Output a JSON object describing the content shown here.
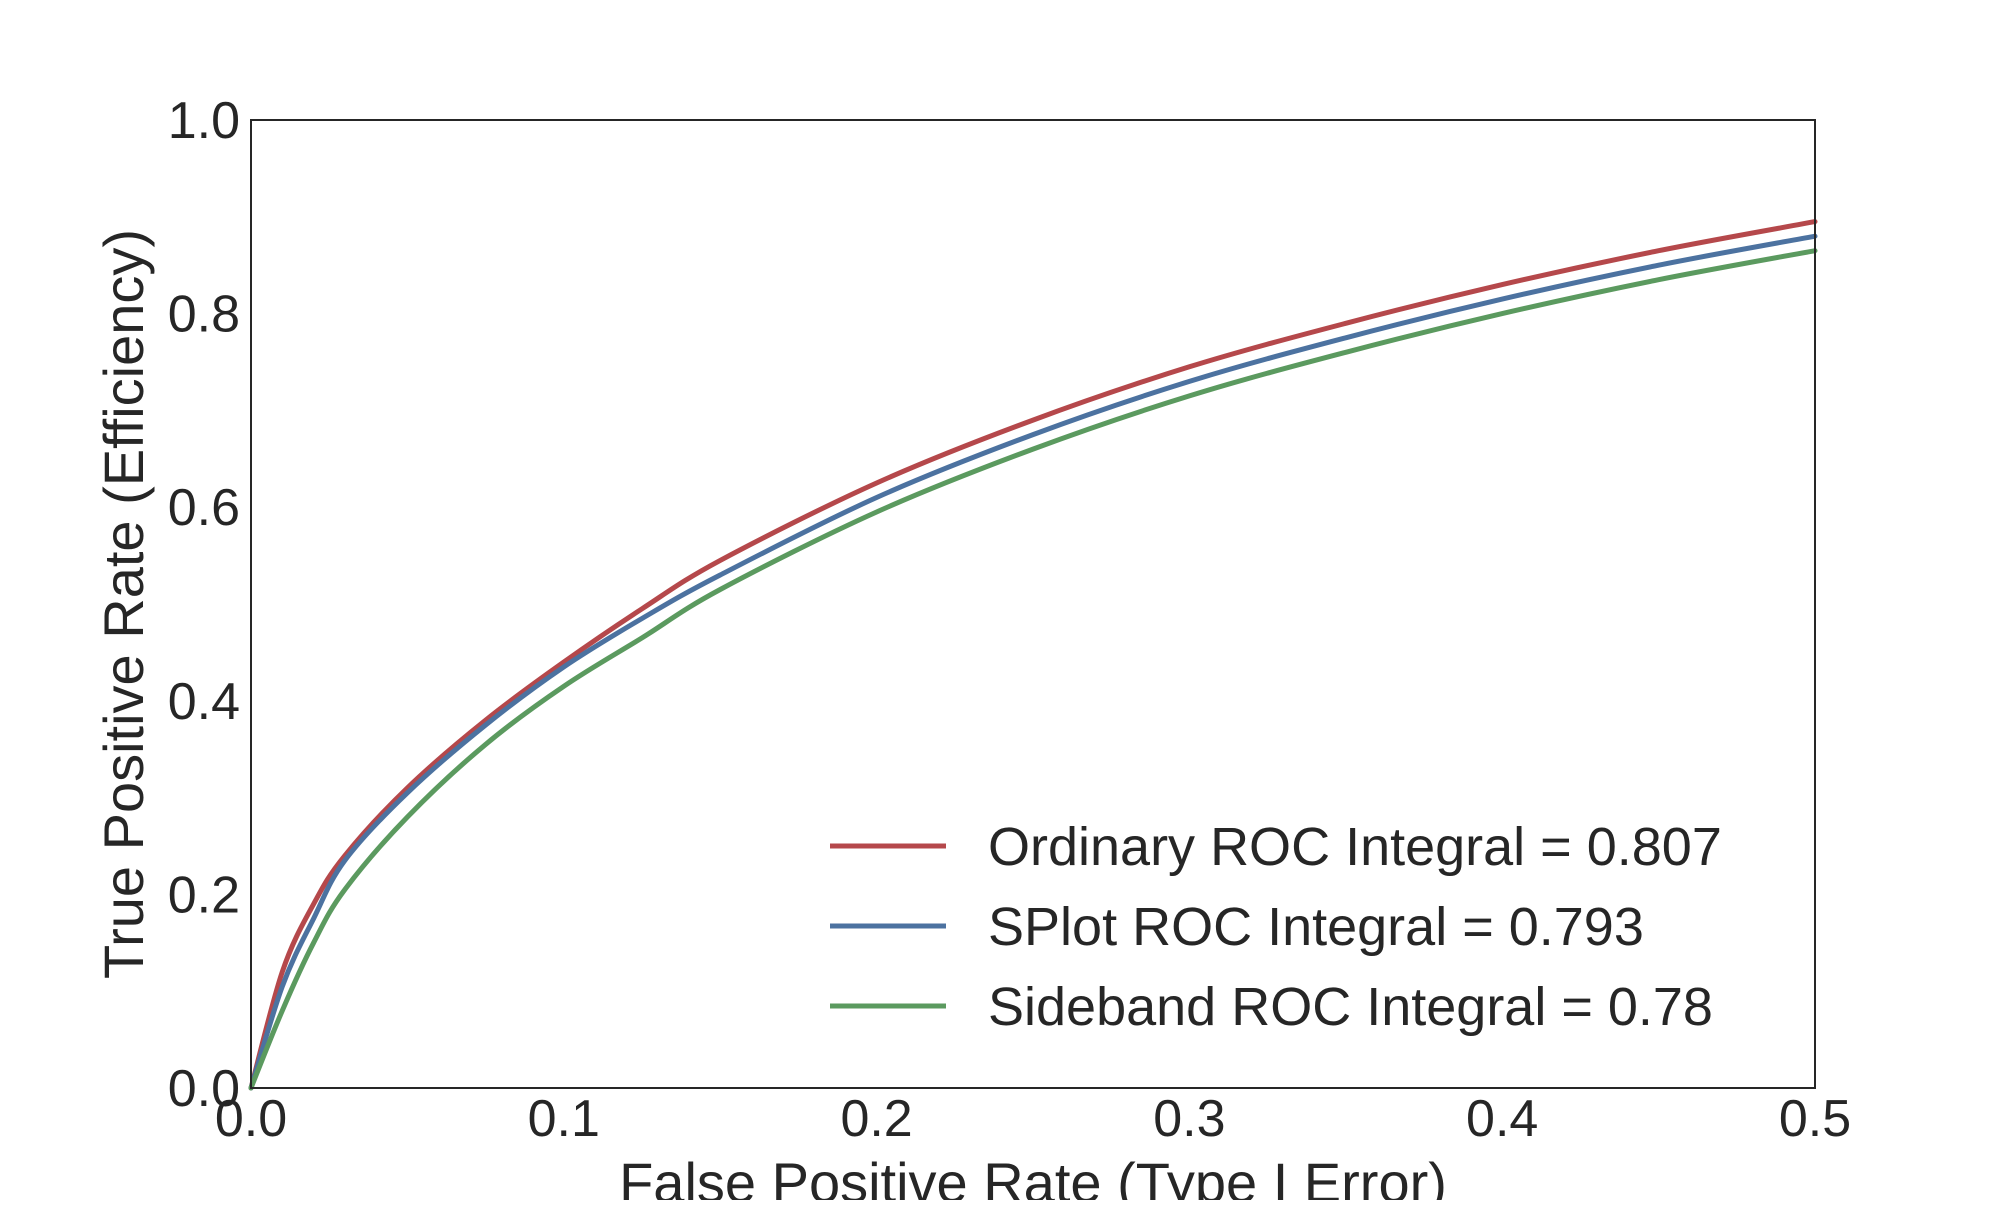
{
  "chart_data": {
    "type": "line",
    "title": "",
    "xlabel": "False Positive Rate (Type I Error)",
    "ylabel": "True Positive Rate (Efficiency)",
    "xlim": [
      0.0,
      0.5
    ],
    "ylim": [
      0.0,
      1.0
    ],
    "xticks": [
      "0.0",
      "0.1",
      "0.2",
      "0.3",
      "0.4",
      "0.5"
    ],
    "yticks": [
      "0.0",
      "0.2",
      "0.4",
      "0.6",
      "0.8",
      "1.0"
    ],
    "grid": false,
    "legend_position": "lower-right",
    "x": [
      0.0,
      0.01,
      0.02,
      0.03,
      0.05,
      0.075,
      0.1,
      0.125,
      0.15,
      0.2,
      0.25,
      0.3,
      0.35,
      0.4,
      0.45,
      0.5
    ],
    "series": [
      {
        "name": "Ordinary  ROC Integral = 0.807",
        "color": "#b5484b",
        "values": [
          0.0,
          0.12,
          0.19,
          0.24,
          0.31,
          0.38,
          0.44,
          0.495,
          0.545,
          0.625,
          0.69,
          0.745,
          0.79,
          0.83,
          0.865,
          0.895
        ]
      },
      {
        "name": "SPlot  ROC Integral = 0.793",
        "color": "#4c72a0",
        "values": [
          0.0,
          0.105,
          0.175,
          0.235,
          0.305,
          0.375,
          0.435,
          0.485,
          0.53,
          0.61,
          0.675,
          0.73,
          0.775,
          0.815,
          0.85,
          0.88
        ]
      },
      {
        "name": "Sideband  ROC Integral = 0.78",
        "color": "#5b9a5f",
        "values": [
          0.0,
          0.08,
          0.15,
          0.205,
          0.28,
          0.355,
          0.415,
          0.465,
          0.515,
          0.595,
          0.66,
          0.715,
          0.76,
          0.8,
          0.835,
          0.865
        ]
      }
    ]
  }
}
